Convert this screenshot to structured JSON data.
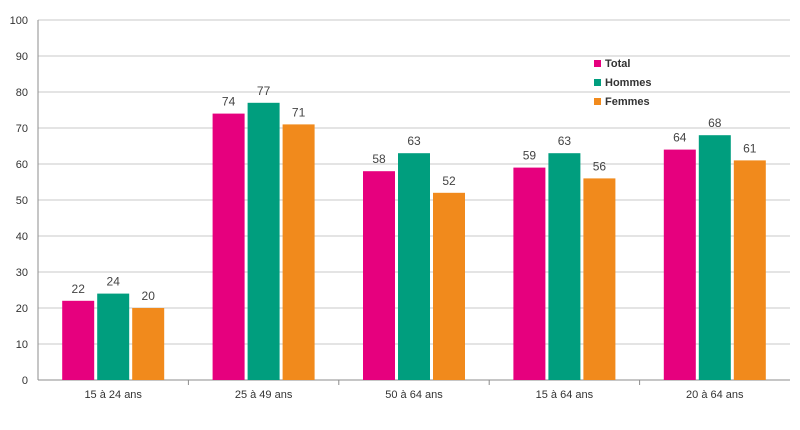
{
  "chart_data": {
    "type": "bar",
    "title": "",
    "xlabel": "",
    "ylabel": "",
    "ylim": [
      0,
      100
    ],
    "yticks": [
      0,
      10,
      20,
      30,
      40,
      50,
      60,
      70,
      80,
      90,
      100
    ],
    "grid": true,
    "legend_position": "top-right",
    "categories": [
      "15 à 24 ans",
      "25 à 49 ans",
      "50 à 64 ans",
      "15 à 64 ans",
      "20 à 64 ans"
    ],
    "series": [
      {
        "name": "Total",
        "color": "#e6007e",
        "values": [
          22,
          74,
          58,
          59,
          64
        ],
        "labels": [
          "22",
          "74",
          "58",
          "59",
          "64"
        ]
      },
      {
        "name": "Hommes",
        "color": "#009e7e",
        "values": [
          24,
          77,
          63,
          63,
          68
        ],
        "labels": [
          "24",
          "77",
          "63",
          "63",
          "68"
        ]
      },
      {
        "name": "Femmes",
        "color": "#f18a1c",
        "values": [
          20,
          71,
          52,
          56,
          61
        ],
        "labels": [
          "20",
          "71",
          "52",
          "56",
          "61"
        ]
      }
    ]
  }
}
